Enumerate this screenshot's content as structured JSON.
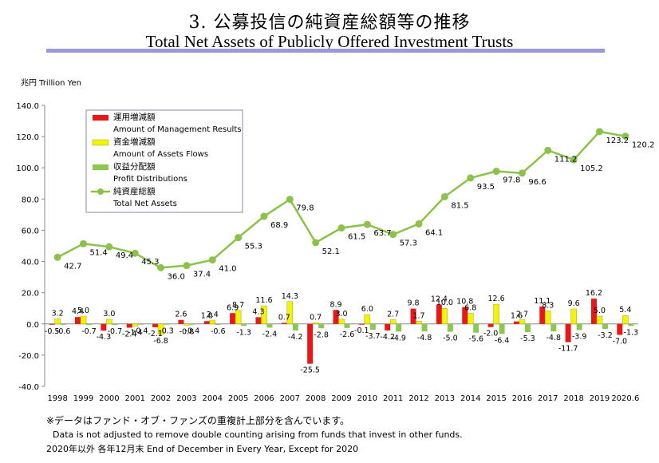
{
  "header": {
    "title_jp": "3.  公募投信の純資産総額等の推移",
    "title_en": "Total Net Assets of Publicly Offered Investment Trusts"
  },
  "notes": {
    "line1": "※データはファンド・オブ・ファンズの重複計上部分を含んでいます。",
    "line2": "Data is not adjusted to remove double counting arising from funds that invest in other funds.",
    "line3": "2020年以外  各年12月末   End of December in Every Year, Except for 2020"
  },
  "chart_data": {
    "type": "bar",
    "unit_label": "兆円  Trillion Yen",
    "categories": [
      "1998",
      "1999",
      "2000",
      "2001",
      "2002",
      "2003",
      "2004",
      "2005",
      "2006",
      "2007",
      "2008",
      "2009",
      "2010",
      "2011",
      "2012",
      "2013",
      "2014",
      "2015",
      "2016",
      "2017",
      "2018",
      "2019",
      "2020.6"
    ],
    "ylim": [
      -40,
      140
    ],
    "yticks": [
      -40,
      -20,
      0,
      20,
      40,
      60,
      80,
      100,
      120,
      140
    ],
    "ytick_labels": [
      "-40.0",
      "-20.0",
      "0.0",
      "20.0",
      "40.0",
      "60.0",
      "80.0",
      "100.0",
      "120.0",
      "140.0"
    ],
    "grid": false,
    "legend_position": "top-left",
    "series": [
      {
        "name": "運用増減額",
        "name_en": "Amount of Management Results",
        "type": "bar",
        "color": "#e81818",
        "values": [
          -0.5,
          4.4,
          -4.3,
          -2.4,
          -2.1,
          2.6,
          1.8,
          6.9,
          4.3,
          0.7,
          -25.5,
          8.9,
          -0.1,
          -4.2,
          9.8,
          12.4,
          10.8,
          -2.0,
          1.6,
          11.1,
          -11.7,
          16.2,
          -7.0
        ]
      },
      {
        "name": "資金増減額",
        "name_en": "Amount of Assets Flows",
        "type": "bar",
        "color": "#f2f20e",
        "values": [
          3.2,
          5.0,
          3.0,
          -1.4,
          -6.8,
          -0.8,
          2.4,
          8.7,
          11.6,
          14.3,
          0.7,
          3.0,
          6.0,
          2.7,
          1.7,
          10.0,
          6.8,
          12.6,
          2.7,
          8.3,
          9.6,
          5.0,
          5.4
        ]
      },
      {
        "name": "収益分配額",
        "name_en": "Profit Distributions",
        "type": "bar",
        "color": "#8cc850",
        "values": [
          -0.6,
          -0.7,
          -0.7,
          -0.4,
          -0.3,
          -0.4,
          -0.6,
          -1.3,
          -2.4,
          -4.2,
          -2.8,
          -2.6,
          -3.7,
          -4.9,
          -4.8,
          -5.0,
          -5.6,
          -6.4,
          -5.3,
          -4.8,
          -3.9,
          -3.2,
          -1.3
        ]
      },
      {
        "name": "純資産総額",
        "name_en": "Total Net Assets",
        "type": "line",
        "color": "#8cc24a",
        "values": [
          42.7,
          51.4,
          49.4,
          45.3,
          36.0,
          37.4,
          41.0,
          55.3,
          68.9,
          79.8,
          52.1,
          61.5,
          63.7,
          57.3,
          64.1,
          81.5,
          93.5,
          97.8,
          96.6,
          111.2,
          105.2,
          123.2,
          120.2
        ]
      }
    ]
  }
}
